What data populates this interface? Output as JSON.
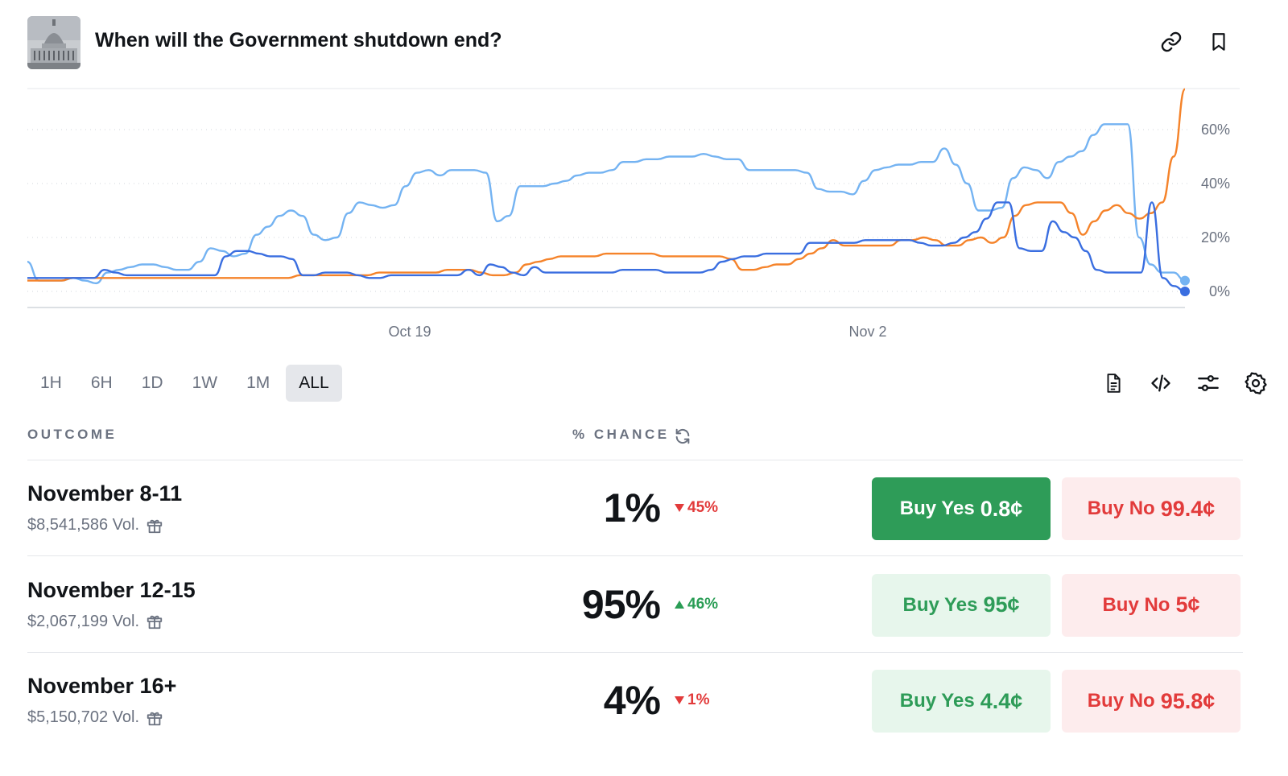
{
  "header": {
    "title": "When will the Government shutdown end?",
    "thumbnail_icon": "capitol-building-image",
    "link_icon": "link-icon",
    "bookmark_icon": "bookmark-icon"
  },
  "chart_data": {
    "type": "line",
    "title": "",
    "xlabel": "",
    "ylabel": "",
    "x_tick_labels": [
      "Oct 19",
      "Nov 2"
    ],
    "y_tick_labels": [
      "0%",
      "20%",
      "40%",
      "60%"
    ],
    "ylim": [
      0,
      75
    ],
    "grid": "dotted horizontal",
    "series": [
      {
        "color": "#74b3f2",
        "values": [
          11,
          4,
          4,
          4,
          5,
          4,
          3,
          7,
          8,
          9,
          10,
          10,
          9,
          8,
          8,
          11,
          16,
          15,
          13,
          14,
          21,
          24,
          28,
          30,
          28,
          21,
          19,
          20,
          29,
          33,
          32,
          31,
          32,
          39,
          44,
          45,
          43,
          45,
          45,
          45,
          44,
          26,
          28,
          39,
          39,
          39,
          40,
          41,
          43,
          44,
          44,
          45,
          48,
          48,
          49,
          49,
          50,
          50,
          50,
          51,
          50,
          49,
          49,
          45,
          45,
          45,
          45,
          45,
          44,
          38,
          37,
          37,
          36,
          41,
          45,
          46,
          47,
          47,
          48,
          48,
          53,
          47,
          40,
          30,
          30,
          31,
          42,
          46,
          45,
          42,
          48,
          50,
          52,
          58,
          62,
          62,
          62,
          20,
          10,
          7,
          7,
          4
        ]
      },
      {
        "color": "#f5832a",
        "values": [
          4,
          4,
          4,
          4,
          5,
          5,
          5,
          5,
          5,
          5,
          5,
          5,
          5,
          5,
          5,
          5,
          5,
          5,
          5,
          5,
          5,
          5,
          5,
          5,
          6,
          6,
          6,
          6,
          6,
          6,
          6,
          7,
          7,
          7,
          7,
          7,
          7,
          8,
          8,
          8,
          7,
          6,
          6,
          7,
          10,
          11,
          12,
          13,
          13,
          13,
          13,
          14,
          14,
          14,
          14,
          14,
          13,
          13,
          13,
          13,
          13,
          13,
          12,
          8,
          8,
          9,
          10,
          10,
          12,
          14,
          16,
          19,
          17,
          17,
          17,
          17,
          17,
          19,
          19,
          20,
          19,
          17,
          17,
          19,
          20,
          18,
          20,
          28,
          32,
          33,
          33,
          33,
          29,
          21,
          26,
          30,
          32,
          29,
          27,
          29,
          33,
          50,
          75
        ]
      },
      {
        "color": "#3a6ee0",
        "values": [
          5,
          5,
          5,
          5,
          5,
          5,
          5,
          8,
          7,
          6,
          6,
          6,
          6,
          6,
          6,
          6,
          6,
          6,
          13,
          15,
          15,
          14,
          13,
          13,
          12,
          6,
          6,
          7,
          7,
          7,
          6,
          5,
          5,
          6,
          6,
          6,
          6,
          6,
          6,
          6,
          8,
          6,
          10,
          9,
          7,
          6,
          9,
          7,
          7,
          7,
          7,
          7,
          7,
          7,
          8,
          8,
          8,
          8,
          7,
          7,
          7,
          7,
          8,
          11,
          12,
          13,
          13,
          14,
          14,
          14,
          14,
          18,
          18,
          18,
          18,
          18,
          19,
          19,
          19,
          19,
          19,
          18,
          17,
          17,
          18,
          20,
          22,
          27,
          33,
          33,
          16,
          15,
          15,
          26,
          22,
          20,
          15,
          8,
          7,
          7,
          7,
          7,
          33,
          5,
          2,
          0
        ]
      }
    ],
    "current_values": {
      "blue": 4,
      "dark_blue": 0
    }
  },
  "ranges": {
    "items": [
      "1H",
      "6H",
      "1D",
      "1W",
      "1M",
      "ALL"
    ],
    "active": "ALL"
  },
  "tools": [
    "document-icon",
    "code-icon",
    "sliders-icon",
    "settings-icon"
  ],
  "table": {
    "col_outcome": "OUTCOME",
    "col_chance": "% CHANCE",
    "refresh_icon": "refresh-icon",
    "rows": [
      {
        "name": "November 8-11",
        "volume": "$8,541,586 Vol.",
        "chance": "1%",
        "delta": "45%",
        "direction": "down",
        "buy_yes": "Buy Yes",
        "yes_price": "0.8¢",
        "buy_no": "Buy No",
        "no_price": "99.4¢",
        "yes_active": true
      },
      {
        "name": "November 12-15",
        "volume": "$2,067,199 Vol.",
        "chance": "95%",
        "delta": "46%",
        "direction": "up",
        "buy_yes": "Buy Yes",
        "yes_price": "95¢",
        "buy_no": "Buy No",
        "no_price": "5¢",
        "yes_active": false
      },
      {
        "name": "November 16+",
        "volume": "$5,150,702 Vol.",
        "chance": "4%",
        "delta": "1%",
        "direction": "down",
        "buy_yes": "Buy Yes",
        "yes_price": "4.4¢",
        "buy_no": "Buy No",
        "no_price": "95.8¢",
        "yes_active": false
      }
    ]
  }
}
